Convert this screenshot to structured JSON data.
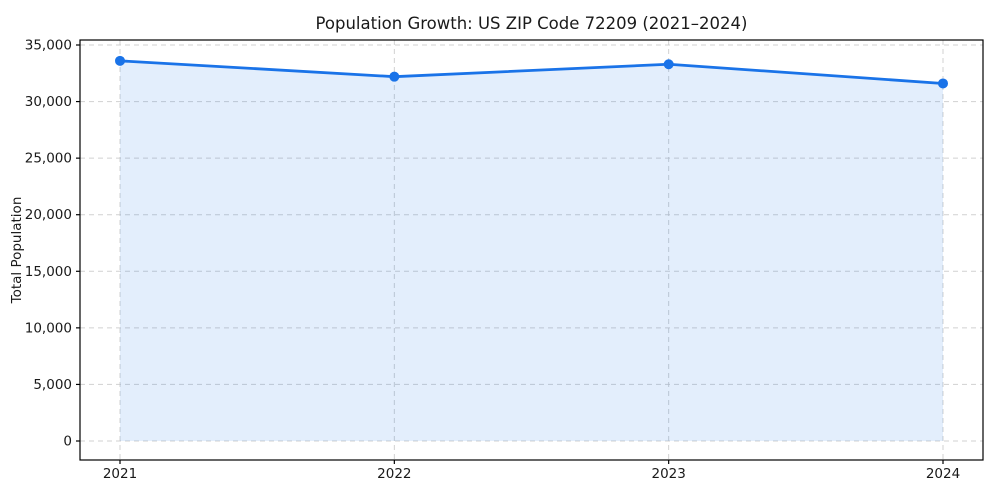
{
  "chart_data": {
    "type": "area",
    "title": "Population Growth: US ZIP Code 72209 (2021–2024)",
    "xlabel": "",
    "ylabel": "Total Population",
    "categories": [
      "2021",
      "2022",
      "2023",
      "2024"
    ],
    "series": [
      {
        "name": "Total Population",
        "values": [
          33600,
          32200,
          33300,
          31600
        ]
      }
    ],
    "ylim": [
      0,
      35000
    ],
    "yticks": [
      0,
      5000,
      10000,
      15000,
      20000,
      25000,
      30000,
      35000
    ],
    "ytick_labels": [
      "0",
      "5,000",
      "10,000",
      "15,000",
      "20,000",
      "25,000",
      "30,000",
      "35,000"
    ],
    "grid": true,
    "grid_style": "dashed",
    "legend": "none",
    "marker": "circle",
    "colors": {
      "line": "#1a73e8",
      "marker": "#1a73e8",
      "fill": "rgba(26,115,232,0.12)",
      "grid": "#c9c9c9",
      "axis": "#000000",
      "text": "#1a1a1a"
    }
  }
}
